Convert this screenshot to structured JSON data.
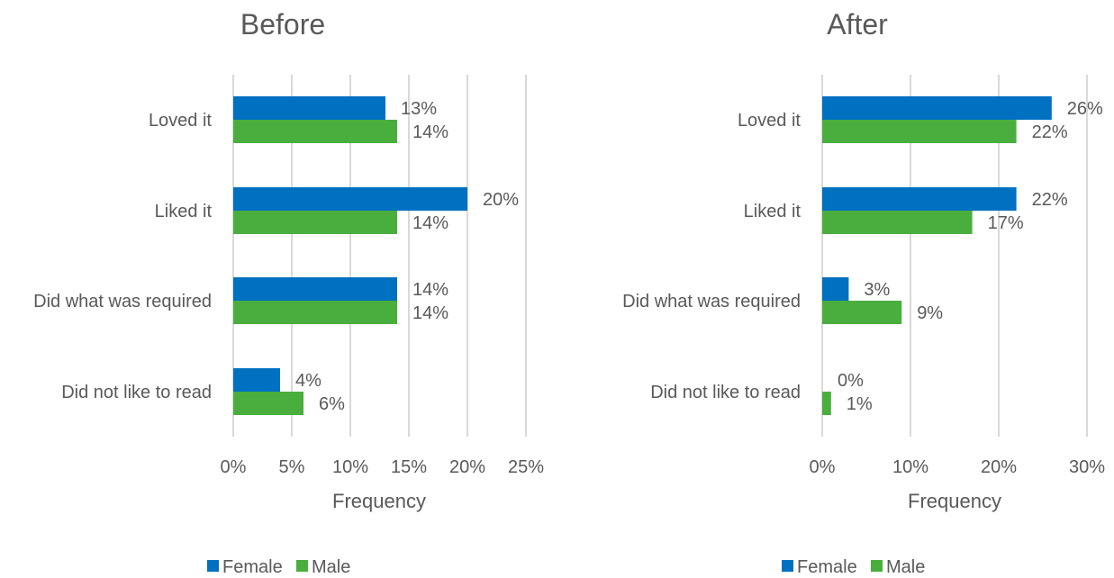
{
  "chart_data": [
    {
      "type": "bar",
      "orientation": "horizontal",
      "title": "Before",
      "xlabel": "Frequency",
      "ylabel": "",
      "categories": [
        "Loved it",
        "Liked it",
        "Did what was required",
        "Did not like to read"
      ],
      "series": [
        {
          "name": "Female",
          "color": "#0070C0",
          "values": [
            13,
            20,
            14,
            4
          ],
          "labels": [
            "13%",
            "20%",
            "14%",
            "4%"
          ]
        },
        {
          "name": "Male",
          "color": "#4AAE3E",
          "values": [
            14,
            14,
            14,
            6
          ],
          "labels": [
            "14%",
            "14%",
            "14%",
            "6%"
          ]
        }
      ],
      "xlim": [
        0,
        25
      ],
      "xticks": [
        0,
        5,
        10,
        15,
        20,
        25
      ],
      "xtick_labels": [
        "0%",
        "5%",
        "10%",
        "15%",
        "20%",
        "25%"
      ],
      "grid": true,
      "legend": "bottom"
    },
    {
      "type": "bar",
      "orientation": "horizontal",
      "title": "After",
      "xlabel": "Frequency",
      "ylabel": "",
      "categories": [
        "Loved it",
        "Liked it",
        "Did what was required",
        "Did not like to read"
      ],
      "series": [
        {
          "name": "Female",
          "color": "#0070C0",
          "values": [
            26,
            22,
            3,
            0
          ],
          "labels": [
            "26%",
            "22%",
            "3%",
            "0%"
          ]
        },
        {
          "name": "Male",
          "color": "#4AAE3E",
          "values": [
            22,
            17,
            9,
            1
          ],
          "labels": [
            "22%",
            "17%",
            "9%",
            "1%"
          ]
        }
      ],
      "xlim": [
        0,
        30
      ],
      "xticks": [
        0,
        10,
        20,
        30
      ],
      "xtick_labels": [
        "0%",
        "10%",
        "20%",
        "30%"
      ],
      "grid": true,
      "legend": "bottom"
    }
  ]
}
